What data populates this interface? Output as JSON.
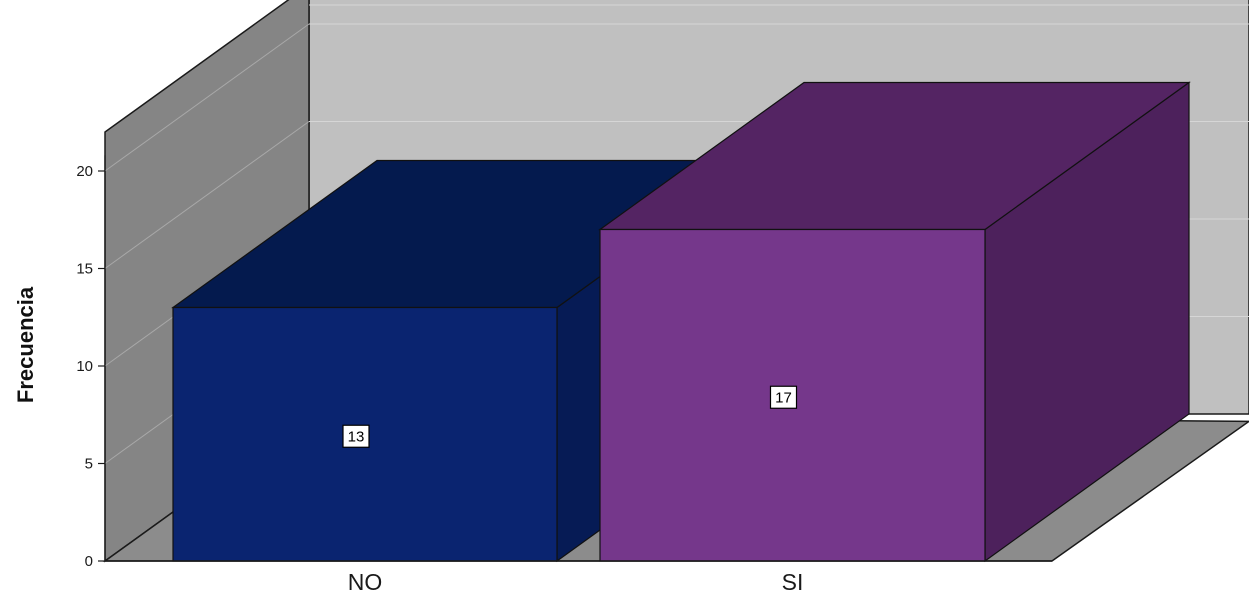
{
  "chart_data": {
    "type": "bar",
    "style": "3d",
    "categories": [
      "NO",
      "SI"
    ],
    "values": [
      13,
      17
    ],
    "data_labels": [
      "13",
      "17"
    ],
    "title": "",
    "xlabel": "",
    "ylabel": "Frecuencia",
    "ylim": [
      0,
      20
    ],
    "yticks": [
      "0",
      "5",
      "10",
      "15",
      "20"
    ],
    "grid": true,
    "legend": "none"
  },
  "colors": {
    "back_wall": "#c0c0c0",
    "side_wall": "#858585",
    "floor": "#8c8c8c",
    "bars": [
      {
        "front": "#0a2470",
        "top": "#041a4e",
        "side": "#061b55"
      },
      {
        "front": "#75378b",
        "top": "#542463",
        "side": "#4d215c"
      }
    ]
  }
}
